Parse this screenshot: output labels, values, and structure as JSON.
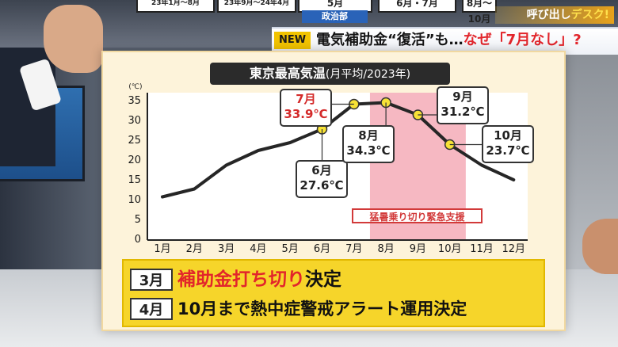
{
  "top_bar": {
    "boxes": [
      "23年1月〜8月",
      "23年9月〜24年4月",
      "5月",
      "6月・7月",
      "8月〜10月"
    ],
    "dept_tag": "政治部",
    "corner_title": {
      "prefix": "呼び出し",
      "accent": "デスク!"
    }
  },
  "headline": {
    "badge": "NEW",
    "text_main": "電気補助金“復活”も…",
    "text_red": "なぜ「7月なし」?"
  },
  "chart_data": {
    "type": "line",
    "title": "東京最高気温",
    "subtitle": "(月平均/2023年)",
    "ylabel_unit": "(℃)",
    "categories": [
      "1月",
      "2月",
      "3月",
      "4月",
      "5月",
      "6月",
      "7月",
      "8月",
      "9月",
      "10月",
      "11月",
      "12月"
    ],
    "series": [
      {
        "values": [
          10.5,
          12.5,
          18.5,
          22.2,
          24.2,
          27.6,
          33.9,
          34.3,
          31.2,
          23.7,
          18.5,
          14.8
        ]
      }
    ],
    "ylim": [
      0,
      35
    ],
    "yticks": [
      0,
      5,
      10,
      15,
      20,
      25,
      30,
      35
    ],
    "marked_points": [
      {
        "month": "6月",
        "value": 27.6,
        "label_month": "6月",
        "label_value": "27.6℃",
        "highlight": false
      },
      {
        "month": "7月",
        "value": 33.9,
        "label_month": "7月",
        "label_value": "33.9℃",
        "highlight": true
      },
      {
        "month": "8月",
        "value": 34.3,
        "label_month": "8月",
        "label_value": "34.3℃",
        "highlight": false
      },
      {
        "month": "9月",
        "value": 31.2,
        "label_month": "9月",
        "label_value": "31.2℃",
        "highlight": false
      },
      {
        "month": "10月",
        "value": 23.7,
        "label_month": "10月",
        "label_value": "23.7℃",
        "highlight": false
      }
    ],
    "band": {
      "from": "8月",
      "to": "10月",
      "label": "猛暑乗り切り緊急支援",
      "color": "#f6b8c2"
    },
    "line_color": "#262626",
    "marker_color": "#f7e236",
    "grid": false
  },
  "bottom": {
    "rows": [
      {
        "month": "3月",
        "red": "補助金打ち切り",
        "black": "決定"
      },
      {
        "month": "4月",
        "red": "",
        "black": "10月まで熱中症警戒アラート運用決定"
      }
    ]
  }
}
